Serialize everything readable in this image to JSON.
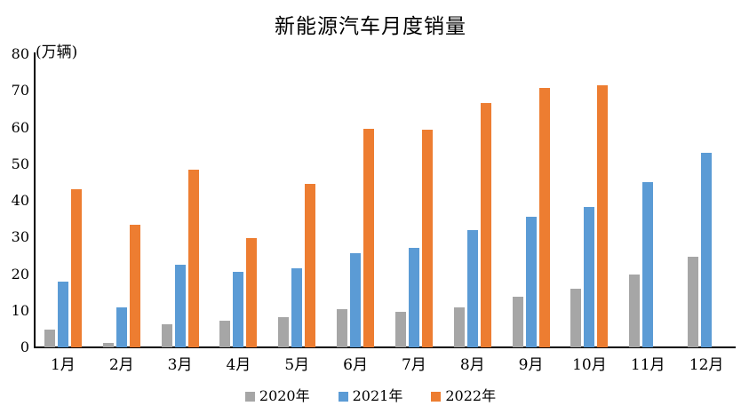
{
  "chart_data": {
    "type": "bar",
    "title": "新能源汽车月度销量",
    "unit_label": "(万辆)",
    "categories": [
      "1月",
      "2月",
      "3月",
      "4月",
      "5月",
      "6月",
      "7月",
      "8月",
      "9月",
      "10月",
      "11月",
      "12月"
    ],
    "series": [
      {
        "name": "2020年",
        "color": "#A6A6A6",
        "values": [
          4.8,
          1.3,
          6.2,
          7.2,
          8.2,
          10.4,
          9.8,
          10.9,
          13.8,
          16.0,
          20.0,
          24.8
        ]
      },
      {
        "name": "2021年",
        "color": "#5B9BD5",
        "values": [
          17.9,
          11.0,
          22.6,
          20.6,
          21.7,
          25.6,
          27.1,
          32.1,
          35.7,
          38.3,
          45.0,
          53.1
        ]
      },
      {
        "name": "2022年",
        "color": "#ED7D31",
        "values": [
          43.1,
          33.4,
          48.4,
          29.9,
          44.7,
          59.6,
          59.3,
          66.6,
          70.8,
          71.4,
          null,
          null
        ]
      }
    ],
    "ylabel": "",
    "xlabel": "",
    "ylim": [
      0,
      80
    ],
    "yticks": [
      0,
      10,
      20,
      30,
      40,
      50,
      60,
      70,
      80
    ],
    "grid": false,
    "legend_position": "bottom",
    "axis_color": "#000000",
    "text_color": "#000000",
    "background_color": "#FFFFFF"
  }
}
